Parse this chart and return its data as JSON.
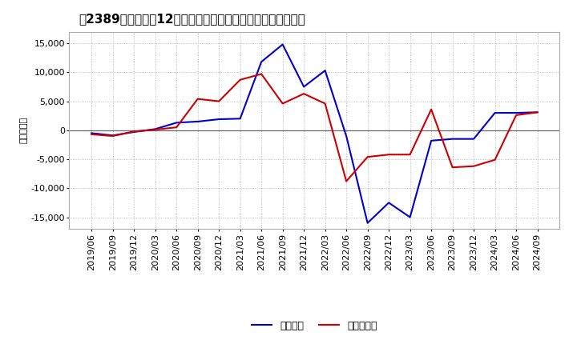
{
  "title": "［2389］　利益の12か月移動合計の対前年同期増減額の推移",
  "ylabel": "（百万円）",
  "background_color": "#ffffff",
  "plot_bg_color": "#ffffff",
  "grid_color": "#aaaaaa",
  "ylim": [
    -17000,
    17000
  ],
  "yticks": [
    -15000,
    -10000,
    -5000,
    0,
    5000,
    10000,
    15000
  ],
  "x_labels": [
    "2019/06",
    "2019/09",
    "2019/12",
    "2020/03",
    "2020/06",
    "2020/09",
    "2020/12",
    "2021/03",
    "2021/06",
    "2021/09",
    "2021/12",
    "2022/03",
    "2022/06",
    "2022/09",
    "2022/12",
    "2023/03",
    "2023/06",
    "2023/09",
    "2023/12",
    "2024/03",
    "2024/06",
    "2024/09"
  ],
  "series_keiri": [
    -500,
    -900,
    -300,
    200,
    1300,
    1500,
    1900,
    2000,
    11800,
    14800,
    7500,
    10300,
    -1000,
    -16000,
    -12500,
    -15000,
    -1800,
    -1500,
    -1500,
    3000,
    3000,
    3100
  ],
  "series_junri": [
    -700,
    -1000,
    -200,
    100,
    500,
    5400,
    5000,
    8700,
    9700,
    4600,
    6300,
    4600,
    -8800,
    -4600,
    -4200,
    -4200,
    3600,
    -6400,
    -6200,
    -5100,
    2600,
    3100
  ],
  "color_keiri": "#0000cc",
  "color_junri": "#cc0000",
  "legend_keiri": "経常利益",
  "legend_junri": "当期純利益",
  "title_fontsize": 11,
  "axis_fontsize": 8,
  "legend_fontsize": 9,
  "ylabel_fontsize": 8
}
